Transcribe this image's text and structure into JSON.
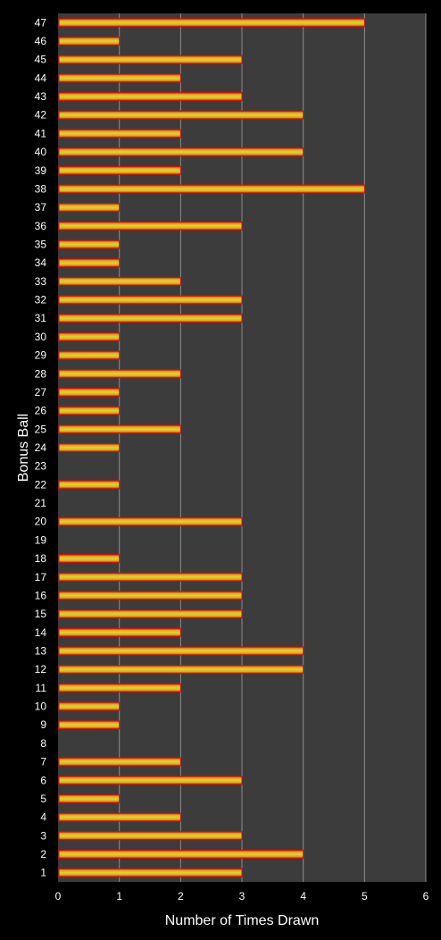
{
  "chart_data": {
    "type": "bar",
    "orientation": "horizontal",
    "title": "",
    "xlabel": "Number of Times Drawn",
    "ylabel": "Bonus Ball",
    "xlim": [
      0,
      6
    ],
    "x_ticks": [
      "0",
      "1",
      "2",
      "3",
      "4",
      "5",
      "6"
    ],
    "grid": "vertical",
    "legend": "none",
    "categories": [
      "1",
      "2",
      "3",
      "4",
      "5",
      "6",
      "7",
      "8",
      "9",
      "10",
      "11",
      "12",
      "13",
      "14",
      "15",
      "16",
      "17",
      "18",
      "19",
      "20",
      "21",
      "22",
      "23",
      "24",
      "25",
      "26",
      "27",
      "28",
      "29",
      "30",
      "31",
      "32",
      "33",
      "34",
      "35",
      "36",
      "37",
      "38",
      "39",
      "40",
      "41",
      "42",
      "43",
      "44",
      "45",
      "46",
      "47"
    ],
    "values": [
      3,
      4,
      3,
      2,
      1,
      3,
      2,
      0,
      1,
      1,
      2,
      4,
      4,
      2,
      3,
      3,
      3,
      1,
      0,
      3,
      0,
      1,
      0,
      1,
      2,
      1,
      1,
      2,
      1,
      1,
      3,
      3,
      2,
      1,
      1,
      3,
      1,
      5,
      2,
      4,
      2,
      4,
      3,
      2,
      3,
      1,
      5
    ],
    "colors": {
      "background": "#000000",
      "plot_area": "#3c3c3c",
      "grid": "#8c8c8c",
      "bar_outer": "#d01010",
      "bar_mid": "#f0a020",
      "bar_center": "#c8e028",
      "text": "#ffffff"
    }
  }
}
